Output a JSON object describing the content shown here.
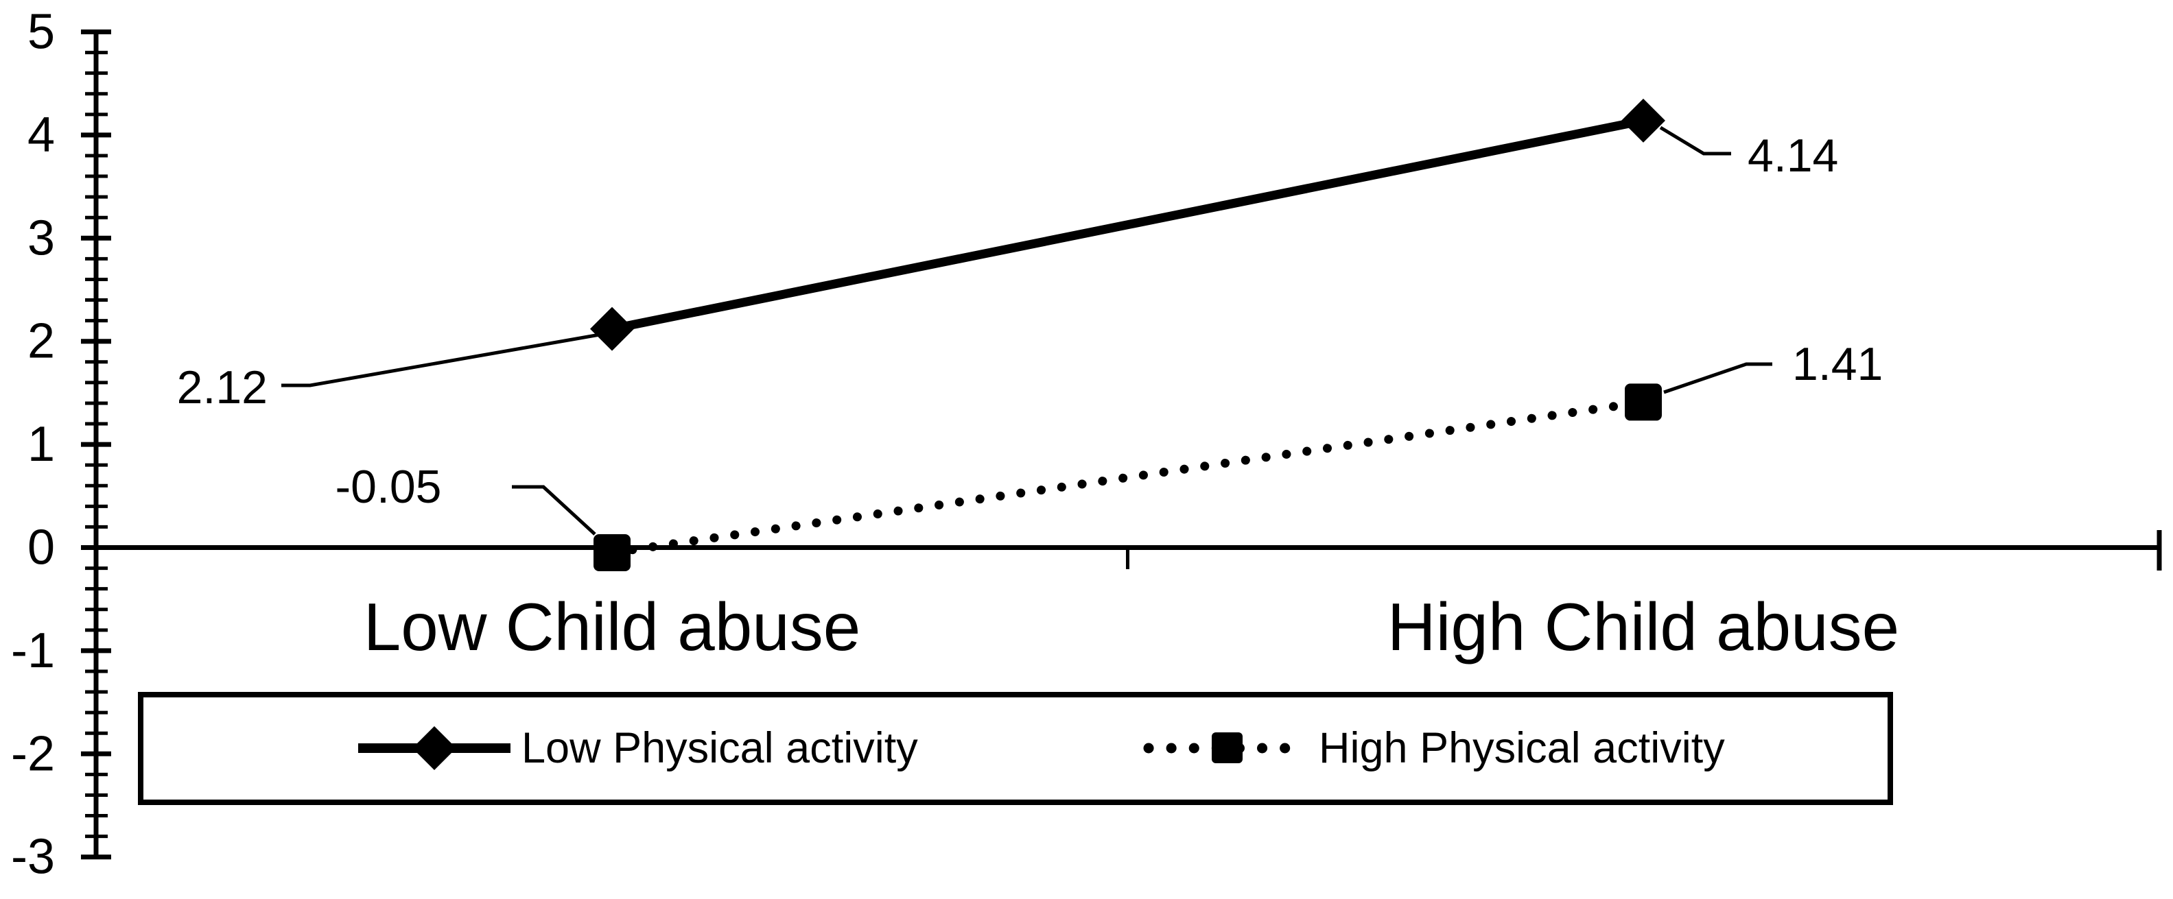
{
  "chart_data": {
    "type": "line",
    "title": "",
    "categories": [
      "Low Child abuse",
      "High Child abuse"
    ],
    "series": [
      {
        "name": "Low Physical activity",
        "values": [
          2.12,
          4.14
        ],
        "data_labels": [
          "2.12",
          "4.14"
        ],
        "marker": "diamond",
        "line_style": "solid"
      },
      {
        "name": "High Physical activity",
        "values": [
          -0.05,
          1.41
        ],
        "data_labels": [
          "-0.05",
          "1.41"
        ],
        "marker": "square",
        "line_style": "dotted"
      }
    ],
    "y_axis": {
      "min": -3,
      "max": 5,
      "major_step": 1,
      "minor_step": 0.2,
      "tick_labels": [
        "5",
        "4",
        "3",
        "2",
        "1",
        "0",
        "-1",
        "-2",
        "-3"
      ]
    },
    "x_axis": {
      "position": "zero-line",
      "tick_labels_visible": true
    },
    "legend": {
      "position": "bottom",
      "boxed": true,
      "entries": [
        "Low Physical activity",
        "High Physical activity"
      ]
    },
    "grid": false,
    "colors": {
      "foreground": "#000000",
      "background": "#ffffff"
    }
  }
}
